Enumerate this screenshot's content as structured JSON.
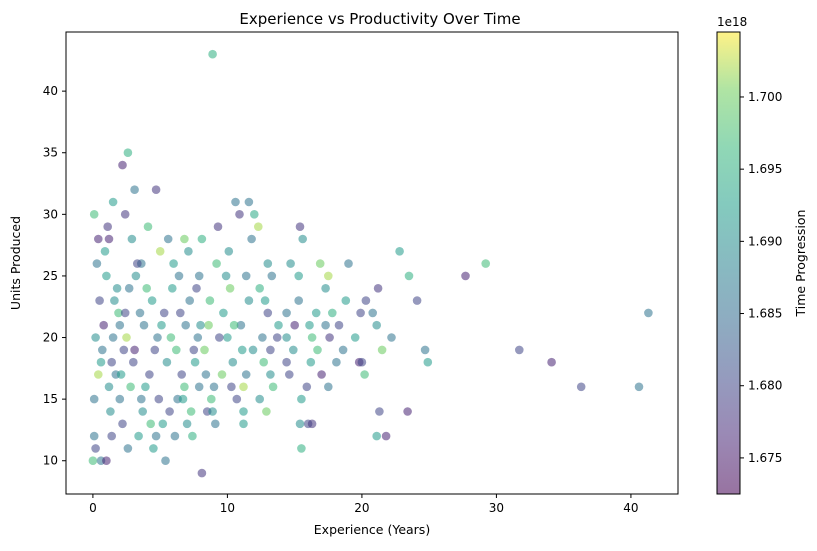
{
  "chart_data": {
    "type": "scatter",
    "title": "Experience vs Productivity Over Time",
    "xlabel": "Experience (Years)",
    "ylabel": "Units Produced",
    "xlim": [
      -2,
      43.5
    ],
    "ylim": [
      7.3,
      44.8
    ],
    "xticks": [
      0,
      10,
      20,
      30,
      40
    ],
    "yticks": [
      10,
      15,
      20,
      25,
      30,
      35,
      40
    ],
    "grid": false,
    "marker_alpha": 0.55,
    "colormap": "viridis",
    "colorbar": {
      "label": "Time Progression",
      "offset_text": "1e18",
      "range": [
        1.6725,
        1.7045
      ],
      "ticks": [
        "1.675",
        "1.680",
        "1.685",
        "1.690",
        "1.695",
        "1.700"
      ],
      "tick_values": [
        1.675,
        1.68,
        1.685,
        1.69,
        1.695,
        1.7
      ]
    },
    "points": [
      [
        8.9,
        43,
        1.695
      ],
      [
        2.2,
        34,
        1.676
      ],
      [
        2.6,
        35,
        1.695
      ],
      [
        3.1,
        32,
        1.686
      ],
      [
        4.7,
        32,
        1.678
      ],
      [
        1.5,
        31,
        1.692
      ],
      [
        10.6,
        31,
        1.686
      ],
      [
        11.6,
        31,
        1.686
      ],
      [
        0.1,
        30,
        1.697
      ],
      [
        2.4,
        30,
        1.678
      ],
      [
        10.9,
        30,
        1.678
      ],
      [
        12.0,
        30,
        1.694
      ],
      [
        9.3,
        29,
        1.678
      ],
      [
        12.3,
        29,
        1.702
      ],
      [
        15.4,
        29,
        1.678
      ],
      [
        1.2,
        28,
        1.676
      ],
      [
        5.6,
        28,
        1.686
      ],
      [
        8.1,
        28,
        1.695
      ],
      [
        11.8,
        28,
        1.686
      ],
      [
        15.6,
        28,
        1.69
      ],
      [
        7.1,
        27,
        1.69
      ],
      [
        10.1,
        27,
        1.69
      ],
      [
        22.8,
        27,
        1.692
      ],
      [
        3.6,
        26,
        1.686
      ],
      [
        6.0,
        26,
        1.692
      ],
      [
        9.2,
        26,
        1.697
      ],
      [
        13.0,
        26,
        1.69
      ],
      [
        14.7,
        26,
        1.69
      ],
      [
        16.9,
        26,
        1.7
      ],
      [
        19.0,
        26,
        1.686
      ],
      [
        29.2,
        26,
        1.697
      ],
      [
        27.7,
        25,
        1.676
      ],
      [
        23.5,
        25,
        1.695
      ],
      [
        17.5,
        25,
        1.702
      ],
      [
        15.3,
        25,
        1.692
      ],
      [
        13.3,
        25,
        1.686
      ],
      [
        11.4,
        25,
        1.686
      ],
      [
        21.2,
        24,
        1.678
      ],
      [
        17.3,
        24,
        1.69
      ],
      [
        12.4,
        24,
        1.695
      ],
      [
        10.2,
        24,
        1.7
      ],
      [
        24.1,
        23,
        1.68
      ],
      [
        20.3,
        23,
        1.68
      ],
      [
        18.8,
        23,
        1.692
      ],
      [
        15.3,
        23,
        1.686
      ],
      [
        11.6,
        23,
        1.69
      ],
      [
        41.3,
        22,
        1.686
      ],
      [
        20.8,
        22,
        1.686
      ],
      [
        19.9,
        22,
        1.68
      ],
      [
        17.8,
        22,
        1.695
      ],
      [
        16.6,
        22,
        1.692
      ],
      [
        14.4,
        22,
        1.686
      ],
      [
        13.0,
        22,
        1.68
      ],
      [
        21.1,
        21,
        1.69
      ],
      [
        18.3,
        21,
        1.68
      ],
      [
        17.3,
        21,
        1.686
      ],
      [
        16.1,
        21,
        1.692
      ],
      [
        15.0,
        21,
        1.676
      ],
      [
        13.8,
        21,
        1.692
      ],
      [
        11.0,
        21,
        1.686
      ],
      [
        8.6,
        21,
        1.7
      ],
      [
        22.2,
        20,
        1.686
      ],
      [
        19.5,
        20,
        1.692
      ],
      [
        17.6,
        20,
        1.678
      ],
      [
        16.3,
        20,
        1.697
      ],
      [
        14.4,
        20,
        1.69
      ],
      [
        12.6,
        20,
        1.686
      ],
      [
        10.0,
        20,
        1.692
      ],
      [
        31.7,
        19,
        1.68
      ],
      [
        24.7,
        19,
        1.686
      ],
      [
        21.5,
        19,
        1.7
      ],
      [
        18.6,
        19,
        1.686
      ],
      [
        16.7,
        19,
        1.697
      ],
      [
        14.9,
        19,
        1.69
      ],
      [
        13.2,
        19,
        1.68
      ],
      [
        11.1,
        19,
        1.692
      ],
      [
        34.1,
        18,
        1.676
      ],
      [
        24.9,
        18,
        1.692
      ],
      [
        19.8,
        18,
        1.676
      ],
      [
        20.0,
        18,
        1.68
      ],
      [
        18.1,
        18,
        1.686
      ],
      [
        16.2,
        18,
        1.692
      ],
      [
        14.4,
        18,
        1.68
      ],
      [
        12.7,
        18,
        1.697
      ],
      [
        10.4,
        18,
        1.69
      ],
      [
        20.2,
        17,
        1.697
      ],
      [
        17.0,
        17,
        1.676
      ],
      [
        14.6,
        17,
        1.68
      ],
      [
        13.2,
        17,
        1.69
      ],
      [
        11.4,
        17,
        1.686
      ],
      [
        9.6,
        17,
        1.7
      ],
      [
        36.3,
        16,
        1.68
      ],
      [
        40.6,
        16,
        1.686
      ],
      [
        17.5,
        16,
        1.686
      ],
      [
        15.9,
        16,
        1.68
      ],
      [
        13.4,
        16,
        1.697
      ],
      [
        11.2,
        16,
        1.702
      ],
      [
        9.0,
        16,
        1.686
      ],
      [
        15.5,
        15,
        1.692
      ],
      [
        12.4,
        15,
        1.69
      ],
      [
        10.7,
        15,
        1.68
      ],
      [
        8.8,
        15,
        1.697
      ],
      [
        21.3,
        14,
        1.68
      ],
      [
        23.4,
        14,
        1.676
      ],
      [
        12.9,
        14,
        1.7
      ],
      [
        11.2,
        14,
        1.692
      ],
      [
        8.5,
        14,
        1.68
      ],
      [
        16.0,
        13,
        1.68
      ],
      [
        16.3,
        13,
        1.678
      ],
      [
        15.4,
        13,
        1.69
      ],
      [
        11.2,
        13,
        1.692
      ],
      [
        9.1,
        13,
        1.686
      ],
      [
        7.0,
        13,
        1.69
      ],
      [
        21.1,
        12,
        1.692
      ],
      [
        21.8,
        12,
        1.676
      ],
      [
        7.4,
        12,
        1.695
      ],
      [
        4.7,
        12,
        1.686
      ],
      [
        1.4,
        12,
        1.68
      ],
      [
        15.5,
        11,
        1.695
      ],
      [
        4.5,
        11,
        1.692
      ],
      [
        2.6,
        11,
        1.686
      ],
      [
        0.2,
        11,
        1.68
      ],
      [
        0.0,
        10,
        1.697
      ],
      [
        0.6,
        10,
        1.686
      ],
      [
        1.0,
        10,
        1.676
      ],
      [
        5.4,
        10,
        1.686
      ],
      [
        8.1,
        9,
        1.678
      ],
      [
        5.2,
        13,
        1.692
      ],
      [
        3.7,
        14,
        1.69
      ],
      [
        6.3,
        15,
        1.686
      ],
      [
        6.8,
        16,
        1.697
      ],
      [
        4.2,
        17,
        1.68
      ],
      [
        7.6,
        18,
        1.692
      ],
      [
        3.1,
        19,
        1.676
      ],
      [
        5.8,
        20,
        1.697
      ],
      [
        2.0,
        21,
        1.686
      ],
      [
        6.5,
        22,
        1.68
      ],
      [
        4.4,
        23,
        1.692
      ],
      [
        1.8,
        24,
        1.69
      ],
      [
        7.9,
        25,
        1.686
      ],
      [
        3.3,
        26,
        1.68
      ],
      [
        5.0,
        27,
        1.702
      ],
      [
        1.1,
        29,
        1.678
      ],
      [
        2.9,
        28,
        1.69
      ],
      [
        0.4,
        28,
        1.676
      ],
      [
        6.8,
        28,
        1.7
      ],
      [
        4.1,
        29,
        1.697
      ],
      [
        0.3,
        26,
        1.686
      ],
      [
        1.0,
        25,
        1.692
      ],
      [
        2.7,
        24,
        1.686
      ],
      [
        0.5,
        23,
        1.68
      ],
      [
        1.9,
        22,
        1.697
      ],
      [
        3.8,
        21,
        1.686
      ],
      [
        0.2,
        20,
        1.69
      ],
      [
        2.3,
        19,
        1.68
      ],
      [
        0.6,
        18,
        1.692
      ],
      [
        1.7,
        17,
        1.686
      ],
      [
        2.8,
        16,
        1.697
      ],
      [
        0.1,
        15,
        1.686
      ],
      [
        1.3,
        14,
        1.69
      ],
      [
        2.2,
        13,
        1.68
      ],
      [
        0.1,
        12,
        1.686
      ],
      [
        3.4,
        12,
        1.692
      ],
      [
        4.9,
        15,
        1.68
      ],
      [
        5.5,
        18,
        1.69
      ],
      [
        6.9,
        21,
        1.686
      ],
      [
        7.7,
        24,
        1.68
      ],
      [
        8.3,
        19,
        1.7
      ],
      [
        9.7,
        22,
        1.692
      ],
      [
        8.4,
        17,
        1.686
      ],
      [
        7.3,
        14,
        1.697
      ],
      [
        6.1,
        12,
        1.686
      ],
      [
        0.8,
        21,
        1.676
      ],
      [
        1.6,
        23,
        1.69
      ],
      [
        2.5,
        20,
        1.702
      ],
      [
        3.5,
        22,
        1.686
      ],
      [
        4.6,
        19,
        1.68
      ],
      [
        5.9,
        24,
        1.692
      ],
      [
        6.6,
        17,
        1.68
      ],
      [
        7.8,
        20,
        1.686
      ],
      [
        9.9,
        25,
        1.69
      ],
      [
        10.5,
        21,
        1.697
      ],
      [
        11.9,
        19,
        1.69
      ],
      [
        12.8,
        23,
        1.692
      ],
      [
        13.7,
        20,
        1.68
      ],
      [
        0.4,
        17,
        1.702
      ],
      [
        1.2,
        16,
        1.69
      ],
      [
        2.0,
        15,
        1.686
      ],
      [
        3.0,
        18,
        1.68
      ],
      [
        3.9,
        16,
        1.692
      ],
      [
        4.8,
        20,
        1.686
      ],
      [
        5.3,
        22,
        1.68
      ],
      [
        6.2,
        19,
        1.697
      ],
      [
        7.2,
        23,
        1.686
      ],
      [
        8.0,
        21,
        1.69
      ],
      [
        9.4,
        20,
        1.68
      ],
      [
        0.9,
        27,
        1.692
      ],
      [
        1.5,
        20,
        1.686
      ],
      [
        2.4,
        22,
        1.68
      ],
      [
        3.2,
        25,
        1.69
      ],
      [
        4.0,
        24,
        1.697
      ],
      [
        5.1,
        21,
        1.692
      ],
      [
        6.4,
        25,
        1.686
      ],
      [
        7.5,
        19,
        1.68
      ],
      [
        8.7,
        23,
        1.697
      ],
      [
        0.7,
        19,
        1.686
      ],
      [
        1.4,
        18,
        1.68
      ],
      [
        2.1,
        17,
        1.692
      ],
      [
        3.6,
        15,
        1.686
      ],
      [
        4.3,
        13,
        1.697
      ],
      [
        5.7,
        14,
        1.68
      ],
      [
        6.7,
        15,
        1.692
      ],
      [
        7.9,
        16,
        1.686
      ],
      [
        8.9,
        14,
        1.69
      ],
      [
        10.3,
        16,
        1.68
      ]
    ]
  }
}
